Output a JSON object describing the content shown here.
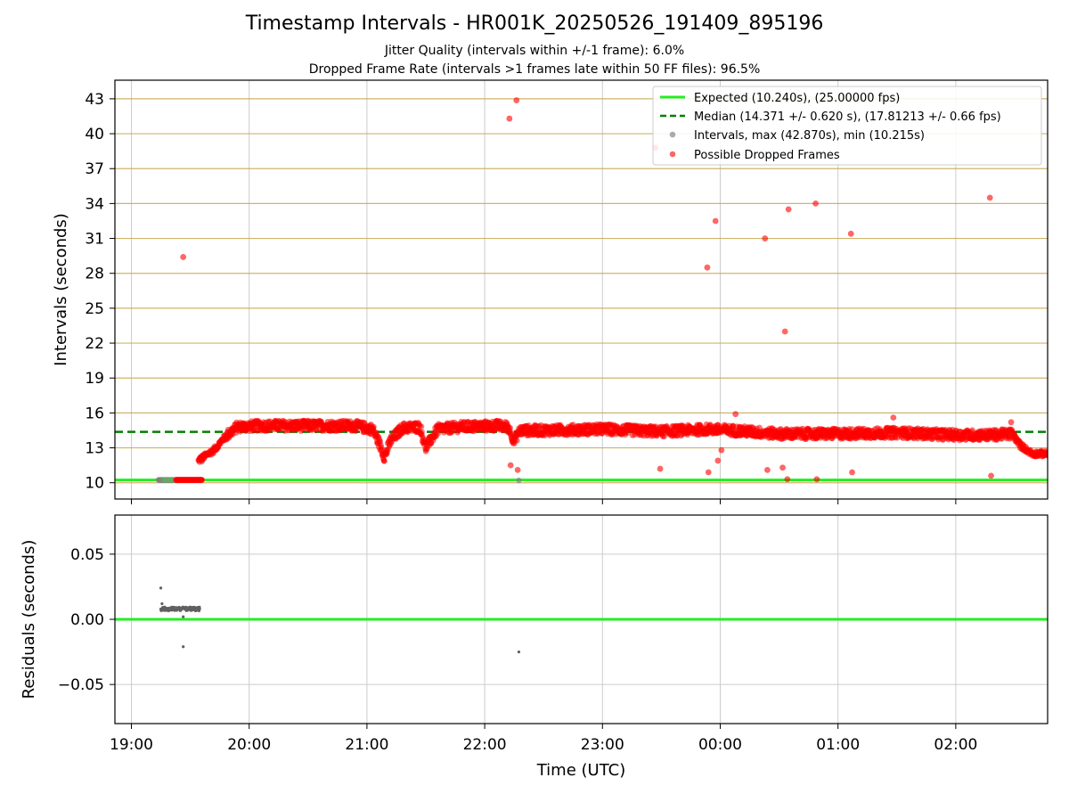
{
  "chart_data": [
    {
      "type": "scatter",
      "title": "Timestamp Intervals - HR001K_20250526_191409_895196",
      "subtitle_lines": [
        "Jitter Quality (intervals within +/-1 frame): 6.0%",
        "Dropped Frame Rate (intervals >1 frames late within 50 FF files): 96.5%"
      ],
      "xlabel": "",
      "ylabel": "Intervals (seconds)",
      "xlim_hours": [
        18.86,
        26.78
      ],
      "ylim": [
        8.6,
        44.6
      ],
      "yticks": [
        10,
        13,
        16,
        19,
        22,
        25,
        28,
        31,
        34,
        37,
        40,
        43
      ],
      "grid": true,
      "legend_position": "top-right",
      "legend": [
        "Expected (10.240s), (25.00000 fps)",
        "Median (14.371 +/- 0.620 s), (17.81213 +/- 0.66 fps)",
        "Intervals, max (42.870s), min (10.215s)",
        "Possible Dropped Frames"
      ],
      "expected_interval": 10.24,
      "median_interval": 14.371,
      "series": [
        {
          "name": "Intervals, max (42.870s), min (10.215s)",
          "color": "#808080",
          "x_hours": [
            19.25,
            19.3,
            19.35,
            19.4,
            19.45,
            19.6,
            22.29
          ],
          "y": [
            10.24,
            10.24,
            10.24,
            10.24,
            10.24,
            11.8,
            10.2
          ]
        },
        {
          "name": "Possible Dropped Frames",
          "color": "#ff0000",
          "baseline_trend": {
            "x_hours": [
              19.45,
              19.58,
              19.7,
              19.8,
              19.9,
              20.1,
              20.5,
              20.9,
              21.05,
              21.1,
              21.15,
              21.2,
              21.3,
              21.45,
              21.5,
              21.6,
              21.8,
              22.1,
              22.2,
              22.25,
              22.3,
              22.5,
              23.0,
              23.5,
              23.9,
              24.1,
              24.5,
              25.0,
              25.5,
              26.0,
              26.3,
              26.48,
              26.55,
              26.65,
              26.78
            ],
            "y": [
              10.24,
              12.0,
              12.8,
              14.0,
              14.8,
              14.9,
              14.9,
              14.9,
              14.6,
              13.5,
              12.2,
              13.6,
              14.7,
              14.8,
              13.0,
              14.6,
              14.8,
              14.9,
              14.8,
              13.6,
              14.5,
              14.5,
              14.6,
              14.4,
              14.6,
              14.5,
              14.2,
              14.2,
              14.3,
              14.1,
              14.1,
              14.2,
              13.2,
              12.5,
              12.5
            ]
          },
          "outliers": {
            "x_hours": [
              19.44,
              22.21,
              22.27,
              23.45,
              23.89,
              23.96,
              24.38,
              24.55,
              24.58,
              24.81,
              25.11,
              26.29,
              22.22,
              22.28,
              23.49,
              23.9,
              23.98,
              24.01,
              24.13,
              24.4,
              24.53,
              24.57,
              24.82,
              25.12,
              26.3,
              26.47,
              25.47
            ],
            "y": [
              29.4,
              41.3,
              42.87,
              38.8,
              28.5,
              32.5,
              31.0,
              23.0,
              33.5,
              34.0,
              31.4,
              34.5,
              11.5,
              11.1,
              11.2,
              10.9,
              11.9,
              12.8,
              15.9,
              11.1,
              11.3,
              10.3,
              10.3,
              10.9,
              10.6,
              15.2,
              15.6
            ]
          }
        }
      ],
      "colors": {
        "expected": "#22ee22",
        "median": "#008000",
        "intervals": "#808080",
        "dropped": "#ff0000",
        "gridline": "#c8a850"
      }
    },
    {
      "type": "scatter",
      "xlabel": "Time (UTC)",
      "ylabel": "Residuals (seconds)",
      "xlim_hours": [
        18.86,
        26.78
      ],
      "ylim": [
        -0.08,
        0.08
      ],
      "yticks": [
        0.05,
        0.0,
        -0.05
      ],
      "ytick_labels": [
        "0.05",
        "0.00",
        "−0.05"
      ],
      "xticks_hours": [
        19,
        20,
        21,
        22,
        23,
        24,
        25,
        26
      ],
      "xtick_labels": [
        "19:00",
        "20:00",
        "21:00",
        "22:00",
        "23:00",
        "00:00",
        "01:00",
        "02:00"
      ],
      "grid": true,
      "series": [
        {
          "name": "",
          "color": "#606060",
          "x_hours": [
            19.25,
            19.26,
            19.27,
            19.28,
            19.3,
            19.32,
            19.34,
            19.36,
            19.38,
            19.4,
            19.42,
            19.44,
            19.46,
            19.48,
            19.5,
            19.52,
            19.54,
            19.56,
            19.58,
            19.26,
            19.25,
            19.44,
            19.44,
            22.29
          ],
          "y": [
            0.008,
            0.007,
            0.008,
            0.009,
            0.007,
            0.008,
            0.007,
            0.008,
            0.007,
            0.008,
            0.007,
            0.009,
            0.008,
            0.007,
            0.008,
            0.009,
            0.007,
            0.008,
            0.008,
            0.012,
            0.024,
            0.002,
            -0.021,
            -0.025
          ]
        }
      ],
      "reference_line": 0.0
    }
  ]
}
